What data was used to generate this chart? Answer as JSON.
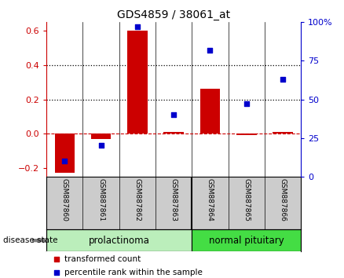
{
  "title": "GDS4859 / 38061_at",
  "samples": [
    "GSM887860",
    "GSM887861",
    "GSM887862",
    "GSM887863",
    "GSM887864",
    "GSM887865",
    "GSM887866"
  ],
  "transformed_count": [
    -0.23,
    -0.03,
    0.6,
    0.01,
    0.26,
    -0.01,
    0.01
  ],
  "percentile_rank_pct": [
    10,
    20,
    97,
    40,
    82,
    47,
    63
  ],
  "left_ylim": [
    -0.25,
    0.65
  ],
  "left_yticks": [
    -0.2,
    0.0,
    0.2,
    0.4,
    0.6
  ],
  "right_yticks": [
    0,
    25,
    50,
    75,
    100
  ],
  "bar_color": "#cc0000",
  "dot_color": "#0000cc",
  "group1_label": "prolactinoma",
  "group2_label": "normal pituitary",
  "group1_count": 4,
  "disease_state_label": "disease state",
  "legend_red": "transformed count",
  "legend_blue": "percentile rank within the sample",
  "group1_bg": "#bbeebb",
  "group2_bg": "#44dd44",
  "sample_bg": "#cccccc",
  "bar_width": 0.55
}
